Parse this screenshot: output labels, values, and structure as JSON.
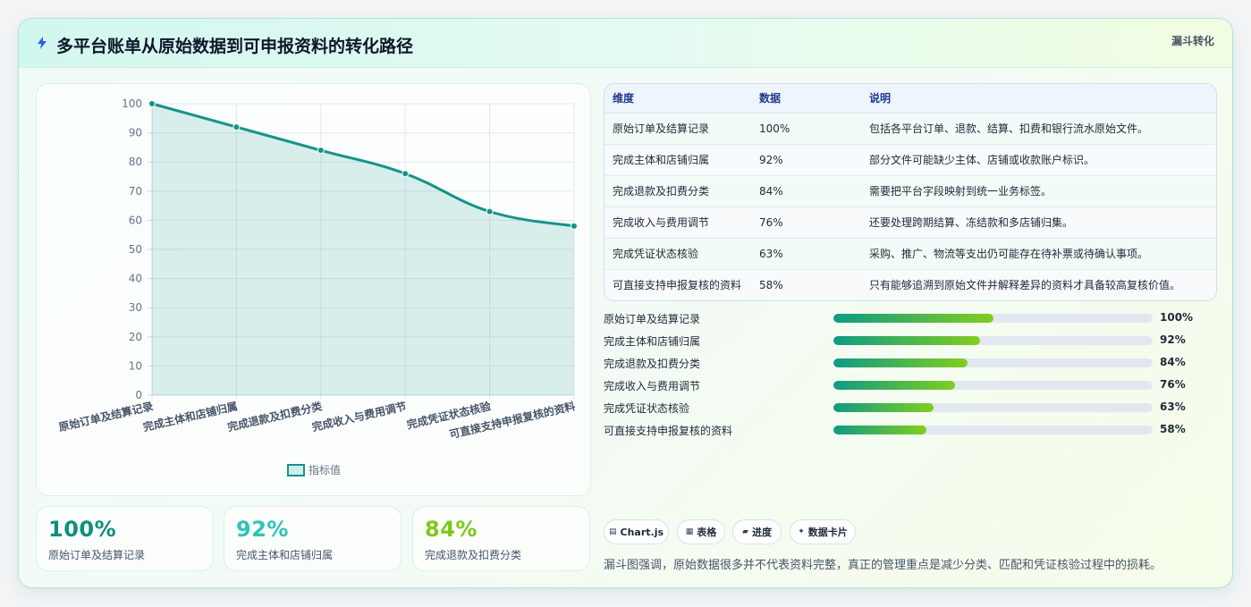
{
  "header": {
    "title": "多平台账单从原始数据到可申报资料的转化路径",
    "title_icon": "lightning-icon",
    "tag": "漏斗转化"
  },
  "chart_data": {
    "type": "area",
    "categories": [
      "原始订单及结算记录",
      "完成主体和店铺归属",
      "完成退款及扣费分类",
      "完成收入与费用调节",
      "完成凭证状态核验",
      "可直接支持申报复核的资料"
    ],
    "series": [
      {
        "name": "指标值",
        "values": [
          100,
          92,
          84,
          76,
          63,
          58
        ],
        "color": "#15938a"
      }
    ],
    "ylim": [
      0,
      100
    ],
    "yticks": [
      0,
      10,
      20,
      30,
      40,
      50,
      60,
      70,
      80,
      90,
      100
    ],
    "grid": true,
    "legend": "bottom",
    "legend_label": "指标值"
  },
  "kpis": [
    {
      "value": "100%",
      "label": "原始订单及结算记录",
      "color": "#0e8f7e"
    },
    {
      "value": "92%",
      "label": "完成主体和店铺归属",
      "color": "#2ec4b6"
    },
    {
      "value": "84%",
      "label": "完成退款及扣费分类",
      "color": "#7ec81b"
    }
  ],
  "table": {
    "headers": [
      "维度",
      "数据",
      "说明"
    ],
    "rows": [
      [
        "原始订单及结算记录",
        "100%",
        "包括各平台订单、退款、结算、扣费和银行流水原始文件。"
      ],
      [
        "完成主体和店铺归属",
        "92%",
        "部分文件可能缺少主体、店铺或收款账户标识。"
      ],
      [
        "完成退款及扣费分类",
        "84%",
        "需要把平台字段映射到统一业务标签。"
      ],
      [
        "完成收入与费用调节",
        "76%",
        "还要处理跨期结算、冻结款和多店铺归集。"
      ],
      [
        "完成凭证状态核验",
        "63%",
        "采购、推广、物流等支出仍可能存在待补票或待确认事项。"
      ],
      [
        "可直接支持申报复核的资料",
        "58%",
        "只有能够追溯到原始文件并解释差异的资料才具备较高复核价值。"
      ]
    ]
  },
  "progress": [
    {
      "label": "原始订单及结算记录",
      "value": 100,
      "text": "100%"
    },
    {
      "label": "完成主体和店铺归属",
      "value": 92,
      "text": "92%"
    },
    {
      "label": "完成退款及扣费分类",
      "value": 84,
      "text": "84%"
    },
    {
      "label": "完成收入与费用调节",
      "value": 76,
      "text": "76%"
    },
    {
      "label": "完成凭证状态核验",
      "value": 63,
      "text": "63%"
    },
    {
      "label": "可直接支持申报复核的资料",
      "value": 58,
      "text": "58%"
    }
  ],
  "pills": [
    {
      "icon": "▤",
      "icon_name": "chart-icon",
      "label": "Chart.js"
    },
    {
      "icon": "▦",
      "icon_name": "table-icon",
      "label": "表格"
    },
    {
      "icon": "▰",
      "icon_name": "progress-icon",
      "label": "进度"
    },
    {
      "icon": "✦",
      "icon_name": "sparkle-icon",
      "label": "数据卡片"
    }
  ],
  "footnote": "漏斗图强调，原始数据很多并不代表资料完整，真正的管理重点是减少分类、匹配和凭证核验过程中的损耗。"
}
